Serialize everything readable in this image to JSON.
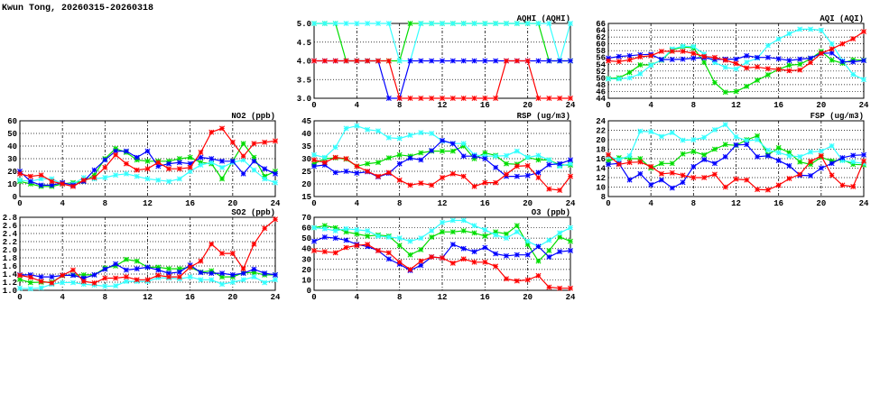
{
  "title": "Kwun Tong, 20260315-20260318",
  "chart_data": [
    {
      "id": "aqhi",
      "type": "line",
      "title": "AQHI (AQHI)",
      "xlim": [
        0,
        24
      ],
      "xticks": [
        0,
        4,
        8,
        12,
        16,
        20,
        24
      ],
      "ylim": [
        3,
        5
      ],
      "yticks": [
        3.0,
        3.5,
        4.0,
        4.5,
        5.0
      ],
      "ydec": 1,
      "grid": true,
      "series": [
        {
          "color": "#00dd00",
          "values": [
            5,
            5,
            5,
            4,
            4,
            4,
            4,
            4,
            4,
            5,
            5,
            5,
            5,
            5,
            5,
            5,
            5,
            5,
            5,
            5,
            5,
            5,
            4,
            4,
            4
          ]
        },
        {
          "color": "#33ffff",
          "values": [
            5,
            5,
            5,
            5,
            5,
            5,
            5,
            5,
            4,
            4,
            5,
            5,
            5,
            5,
            5,
            5,
            5,
            5,
            5,
            5,
            5,
            5,
            5,
            4,
            5
          ]
        },
        {
          "color": "#0000ff",
          "values": [
            4,
            4,
            4,
            4,
            4,
            4,
            4,
            3,
            3,
            4,
            4,
            4,
            4,
            4,
            4,
            4,
            4,
            4,
            4,
            4,
            4,
            4,
            4,
            4,
            4
          ]
        },
        {
          "color": "#ff0000",
          "values": [
            4,
            4,
            4,
            4,
            4,
            4,
            4,
            4,
            3,
            3,
            3,
            3,
            3,
            3,
            3,
            3,
            3,
            3,
            4,
            4,
            4,
            3,
            3,
            3,
            3
          ]
        }
      ]
    },
    {
      "id": "aqi",
      "type": "line",
      "title": "AQI (AQI)",
      "xlim": [
        0,
        24
      ],
      "xticks": [
        0,
        4,
        8,
        12,
        16,
        20,
        24
      ],
      "ylim": [
        44,
        66
      ],
      "yticks": [
        44,
        46,
        48,
        50,
        52,
        54,
        56,
        58,
        60,
        62,
        64,
        66
      ],
      "ydec": 0,
      "grid": true,
      "series": [
        {
          "color": "#00dd00",
          "values": [
            49.8,
            50,
            51.6,
            53.8,
            53.8,
            55.2,
            58.2,
            59.1,
            58.8,
            54.6,
            48.6,
            45.8,
            46,
            47.5,
            49.3,
            50.9,
            52.5,
            53.7,
            54,
            55.6,
            57.8,
            55.2,
            54.3,
            55.3,
            55.2
          ]
        },
        {
          "color": "#33ffff",
          "values": [
            49.7,
            49.7,
            50,
            51.2,
            53.7,
            55.3,
            58.5,
            59.3,
            59.2,
            57,
            54.5,
            53.1,
            52.6,
            54.6,
            55.8,
            59.5,
            61.4,
            63,
            64.3,
            64.3,
            64,
            60,
            55,
            51,
            49.5
          ]
        },
        {
          "color": "#0000ff",
          "values": [
            55.8,
            56.3,
            56.5,
            56.8,
            56.9,
            55.4,
            55.4,
            55.5,
            55.8,
            55.9,
            55.4,
            55.5,
            55.5,
            56.5,
            56,
            56,
            55.6,
            55.1,
            55.5,
            55.8,
            57.2,
            57.3,
            54.8,
            54.7,
            55.1
          ]
        },
        {
          "color": "#ff0000",
          "values": [
            55,
            54.8,
            55.3,
            56.2,
            56.5,
            57.8,
            57.8,
            57.8,
            57.2,
            56.3,
            56,
            55.2,
            54.2,
            52.9,
            53.2,
            52.7,
            52.5,
            52.1,
            52.3,
            54.5,
            57.2,
            58.5,
            60,
            61.5,
            63.6
          ]
        }
      ]
    },
    {
      "id": "no2",
      "type": "line",
      "title": "NO2 (ppb)",
      "xlim": [
        0,
        24
      ],
      "xticks": [
        0,
        4,
        8,
        12,
        16,
        20,
        24
      ],
      "ylim": [
        0,
        60
      ],
      "yticks": [
        0,
        10,
        20,
        30,
        40,
        50,
        60
      ],
      "ydec": 0,
      "grid": true,
      "series": [
        {
          "color": "#00dd00",
          "values": [
            12,
            10,
            8,
            8,
            10,
            11,
            12,
            17,
            30,
            38,
            35,
            29,
            28,
            28,
            28,
            30,
            31,
            27,
            26,
            14,
            28,
            42,
            31,
            16,
            20
          ]
        },
        {
          "color": "#33ffff",
          "values": [
            13,
            12,
            14,
            14,
            10,
            10,
            15,
            14,
            15,
            17,
            18,
            16,
            14,
            13,
            12,
            14,
            20,
            25,
            27,
            23,
            27,
            29,
            21,
            14,
            11
          ]
        },
        {
          "color": "#0000ff",
          "values": [
            20,
            12,
            9,
            9,
            11,
            9,
            12,
            21,
            29,
            36,
            36,
            31,
            36,
            24,
            26,
            27,
            26,
            31,
            30,
            28,
            28,
            18,
            28,
            22,
            18
          ]
        },
        {
          "color": "#ff0000",
          "values": [
            18,
            16,
            17,
            12,
            10,
            8,
            13,
            15,
            23,
            33,
            26,
            21,
            22,
            27,
            22,
            22,
            23,
            35,
            51,
            54,
            43,
            32,
            42,
            43,
            44
          ]
        }
      ]
    },
    {
      "id": "rsp",
      "type": "line",
      "title": "RSP (ug/m3)",
      "xlim": [
        0,
        24
      ],
      "xticks": [
        0,
        4,
        8,
        12,
        16,
        20,
        24
      ],
      "ylim": [
        15,
        45
      ],
      "yticks": [
        15,
        20,
        25,
        30,
        35,
        40,
        45
      ],
      "ydec": 0,
      "grid": true,
      "series": [
        {
          "color": "#00dd00",
          "values": [
            28,
            30,
            30.3,
            29.8,
            27,
            28,
            28.5,
            30.3,
            31.5,
            31,
            32.3,
            33,
            33,
            33,
            35,
            30,
            32.3,
            31.3,
            28,
            27.8,
            30.5,
            29.5,
            29.5,
            27.5,
            27.5
          ]
        },
        {
          "color": "#33ffff",
          "values": [
            31.5,
            30.5,
            34.5,
            42,
            43,
            41.5,
            41,
            38.3,
            38,
            39.3,
            40.3,
            40,
            37,
            36,
            36,
            31.5,
            31,
            31,
            31.2,
            33,
            30.5,
            31.3,
            29.5,
            27,
            28
          ]
        },
        {
          "color": "#0000ff",
          "values": [
            27,
            27.5,
            24.5,
            25,
            24.3,
            24.8,
            22.8,
            24.2,
            28,
            30.2,
            29.5,
            33.2,
            37.2,
            36,
            31,
            31,
            30,
            26.5,
            23,
            23,
            23.3,
            24.5,
            27.6,
            28,
            29.5
          ]
        },
        {
          "color": "#ff0000",
          "values": [
            29.5,
            28.5,
            30.5,
            30,
            27,
            25,
            23,
            24.5,
            21.5,
            19.5,
            20.3,
            19.5,
            22.5,
            24,
            23,
            19,
            20.5,
            20.5,
            23.8,
            27,
            27.2,
            22.5,
            18,
            17.5,
            23
          ]
        }
      ]
    },
    {
      "id": "fsp",
      "type": "line",
      "title": "FSP (ug/m3)",
      "xlim": [
        0,
        24
      ],
      "xticks": [
        0,
        4,
        8,
        12,
        16,
        20,
        24
      ],
      "ylim": [
        8,
        24
      ],
      "yticks": [
        8,
        10,
        12,
        14,
        16,
        18,
        20,
        22,
        24
      ],
      "ydec": 0,
      "grid": true,
      "series": [
        {
          "color": "#00dd00",
          "values": [
            15.5,
            16.2,
            16,
            16,
            14,
            15,
            15,
            17,
            17.5,
            16.8,
            18,
            19,
            18.8,
            20,
            20.8,
            16.8,
            18.3,
            17.3,
            15.3,
            14.8,
            16.3,
            15.5,
            15.8,
            14.8,
            14.7
          ]
        },
        {
          "color": "#33ffff",
          "values": [
            16.5,
            15.8,
            16.6,
            21.8,
            21.7,
            20.7,
            21.5,
            19.9,
            20,
            20.5,
            22.1,
            23.2,
            20.6,
            19.8,
            20,
            17.8,
            17.3,
            16.6,
            16.4,
            17.4,
            17.6,
            18.7,
            15.6,
            15.3,
            15
          ]
        },
        {
          "color": "#0000ff",
          "values": [
            14.8,
            15,
            11.5,
            12.8,
            10.5,
            11.5,
            9.8,
            11,
            14.3,
            15.8,
            15,
            16.4,
            18.9,
            19,
            16.4,
            16.6,
            15.6,
            14.5,
            12.5,
            12.4,
            14,
            15,
            16.2,
            16.7,
            16.8
          ]
        },
        {
          "color": "#ff0000",
          "values": [
            16.8,
            14.8,
            15.2,
            15.3,
            14.3,
            12.8,
            13,
            12.5,
            12,
            12,
            12.7,
            10,
            11.7,
            11.5,
            9.5,
            9.4,
            10.4,
            11.8,
            12.7,
            15.4,
            16.6,
            12.5,
            10.4,
            10.1,
            15.5
          ]
        }
      ]
    },
    {
      "id": "so2",
      "type": "line",
      "title": "SO2 (ppb)",
      "xlim": [
        0,
        24
      ],
      "xticks": [
        0,
        4,
        8,
        12,
        16,
        20,
        24
      ],
      "ylim": [
        1.0,
        2.8
      ],
      "yticks": [
        1.0,
        1.2,
        1.4,
        1.6,
        1.8,
        2.0,
        2.2,
        2.4,
        2.6,
        2.8
      ],
      "ydec": 1,
      "grid": true,
      "series": [
        {
          "color": "#00dd00",
          "values": [
            1.27,
            1.19,
            1.2,
            1.2,
            1.36,
            1.38,
            1.38,
            1.38,
            1.55,
            1.6,
            1.76,
            1.72,
            1.57,
            1.57,
            1.53,
            1.53,
            1.57,
            1.45,
            1.48,
            1.33,
            1.33,
            1.43,
            1.44,
            1.38,
            1.38
          ]
        },
        {
          "color": "#33ffff",
          "values": [
            1.05,
            1.04,
            1.06,
            1.15,
            1.19,
            1.19,
            1.15,
            1.13,
            1.1,
            1.11,
            1.22,
            1.22,
            1.22,
            1.31,
            1.3,
            1.28,
            1.33,
            1.26,
            1.26,
            1.15,
            1.2,
            1.26,
            1.33,
            1.19,
            1.26
          ]
        },
        {
          "color": "#0000ff",
          "values": [
            1.38,
            1.38,
            1.33,
            1.33,
            1.37,
            1.37,
            1.3,
            1.38,
            1.52,
            1.65,
            1.5,
            1.53,
            1.57,
            1.5,
            1.42,
            1.45,
            1.62,
            1.44,
            1.42,
            1.42,
            1.38,
            1.42,
            1.52,
            1.42,
            1.38
          ]
        },
        {
          "color": "#ff0000",
          "values": [
            1.37,
            1.32,
            1.22,
            1.18,
            1.37,
            1.5,
            1.22,
            1.18,
            1.3,
            1.3,
            1.33,
            1.26,
            1.26,
            1.37,
            1.33,
            1.33,
            1.57,
            1.72,
            2.14,
            1.91,
            1.91,
            1.53,
            2.14,
            2.53,
            2.75
          ]
        }
      ]
    },
    {
      "id": "o3",
      "type": "line",
      "title": "O3 (ppb)",
      "xlim": [
        0,
        24
      ],
      "xticks": [
        0,
        4,
        8,
        12,
        16,
        20,
        24
      ],
      "ylim": [
        0,
        70
      ],
      "yticks": [
        0,
        10,
        20,
        30,
        40,
        50,
        60,
        70
      ],
      "ydec": 0,
      "grid": true,
      "series": [
        {
          "color": "#00dd00",
          "values": [
            60,
            62,
            60,
            56,
            54,
            52,
            53,
            52,
            43,
            34,
            39,
            51,
            56,
            56,
            57,
            55,
            52,
            56,
            54,
            62,
            44,
            28,
            38,
            51,
            47
          ]
        },
        {
          "color": "#33ffff",
          "values": [
            60,
            59,
            57,
            59,
            58,
            57,
            52,
            51,
            50,
            47,
            50,
            57,
            65,
            67,
            67,
            62,
            58,
            53,
            50,
            56,
            47,
            42,
            48,
            55,
            60
          ]
        },
        {
          "color": "#0000ff",
          "values": [
            47,
            51,
            50,
            48,
            44,
            42,
            38,
            30,
            25,
            19,
            24,
            32,
            31,
            44,
            40,
            37,
            41,
            35,
            33,
            34,
            34,
            42,
            32,
            37,
            38
          ]
        },
        {
          "color": "#ff0000",
          "values": [
            38,
            37,
            36,
            41,
            43,
            44,
            38,
            36,
            27,
            20,
            28,
            32,
            31,
            26,
            30,
            27,
            27,
            23,
            11,
            9,
            10,
            14,
            3,
            2,
            2
          ]
        }
      ]
    }
  ]
}
